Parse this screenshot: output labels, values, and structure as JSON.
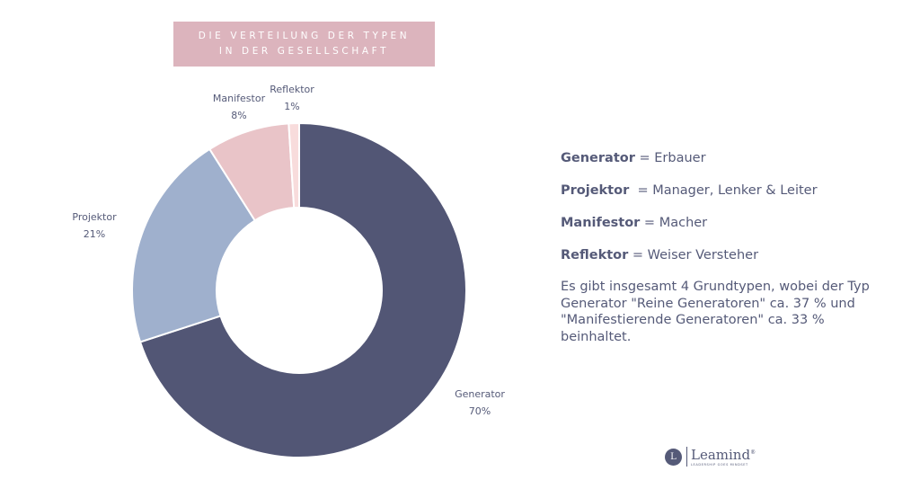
{
  "title": {
    "line1": "DIE VERTEILUNG DER TYPEN",
    "line2": "IN DER GESELLSCHAFT"
  },
  "chart_data": {
    "type": "pie",
    "donut": true,
    "slices": [
      {
        "label": "Generator",
        "value": 70,
        "value_label": "70%",
        "color": "#525675"
      },
      {
        "label": "Projektor",
        "value": 21,
        "value_label": "21%",
        "color": "#9fb0cd"
      },
      {
        "label": "Manifestor",
        "value": 8,
        "value_label": "8%",
        "color": "#e9c4c8"
      },
      {
        "label": "Reflektor",
        "value": 1,
        "value_label": "1%",
        "color": "#f8dcdc"
      }
    ]
  },
  "legend": [
    {
      "name": "Generator",
      "desc": " = Erbauer"
    },
    {
      "name": "Projektor",
      "desc": "  = Manager, Lenker & Leiter"
    },
    {
      "name": "Manifestor",
      "desc": " = Macher"
    },
    {
      "name": "Reflektor",
      "desc": " = Weiser Versteher"
    }
  ],
  "note": "Es gibt insgesamt 4 Grundtypen, wobei der Typ Generator \"Reine Generatoren\" ca. 37 % und \"Manifestierende Generatoren\" ca. 33 % beinhaltet.",
  "logo": {
    "icon_letter": "L",
    "name": "Leamind",
    "registered": "®",
    "tagline": "LEADERSHIP GOES MINDSET"
  }
}
